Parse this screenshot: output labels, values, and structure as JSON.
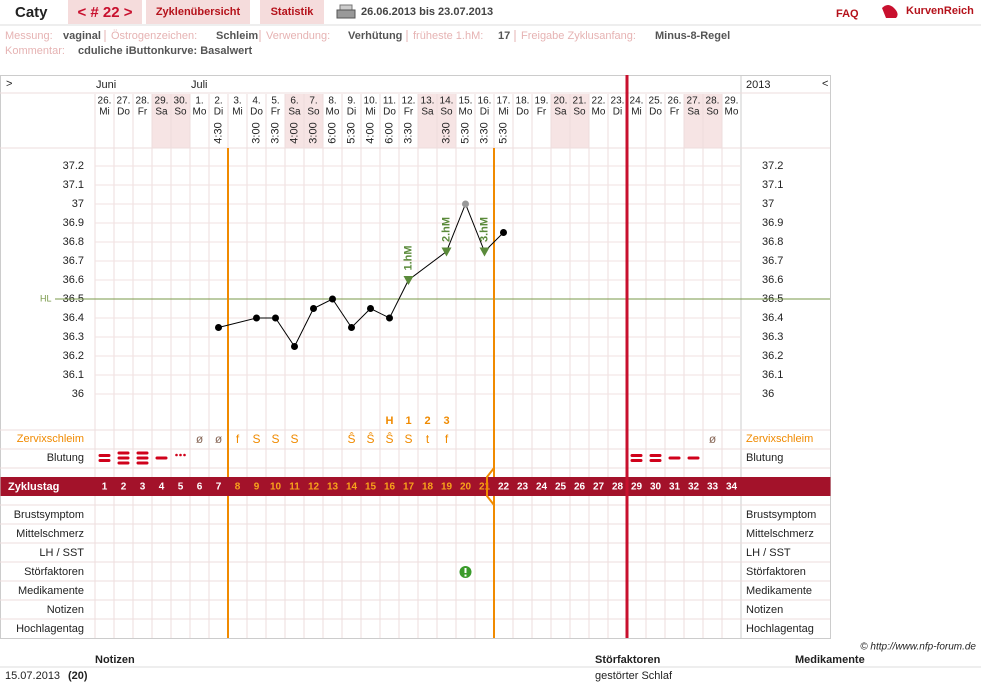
{
  "header": {
    "user": "Caty",
    "cycle_nav": "< # 22 >",
    "tabs": [
      "Zyklenübersicht",
      "Statistik"
    ],
    "date_range": "26.06.2013 bis 23.07.2013",
    "faq": "FAQ",
    "logo": "KurvenReich"
  },
  "info": {
    "fields": [
      {
        "label": "Messung:",
        "value": "vaginal"
      },
      {
        "label": "Östrogenzeichen:",
        "value": "Schleim"
      },
      {
        "label": "Verwendung:",
        "value": "Verhütung"
      },
      {
        "label": "früheste 1.hM:",
        "value": "17"
      },
      {
        "label": "Freigabe Zyklusanfang:",
        "value": "Minus-8-Regel"
      }
    ],
    "comment_label": "Kommentar:",
    "comment": "cduliche iButtonkurve: Basalwert"
  },
  "chart_data": {
    "type": "line",
    "nav_left": ">",
    "nav_right": "<",
    "year": "2013",
    "month_labels": [
      "Juni",
      null,
      null,
      null,
      null,
      "Juli",
      null,
      null,
      null,
      null,
      null,
      null,
      null,
      null,
      null,
      null,
      null,
      null,
      null,
      null,
      null,
      null,
      null,
      null,
      null,
      null,
      null,
      null,
      null,
      null,
      null,
      null,
      null,
      null
    ],
    "categories": [
      "26.",
      "27.",
      "28.",
      "29.",
      "30.",
      "1.",
      "2.",
      "3.",
      "4.",
      "5.",
      "6.",
      "7.",
      "8.",
      "9.",
      "10.",
      "11.",
      "12.",
      "13.",
      "14.",
      "15.",
      "16.",
      "17.",
      "18.",
      "19.",
      "20.",
      "21.",
      "22.",
      "23.",
      "24.",
      "25.",
      "26.",
      "27.",
      "28.",
      "29."
    ],
    "weekdays": [
      "Mi",
      "Do",
      "Fr",
      "Sa",
      "So",
      "Mo",
      "Di",
      "Mi",
      "Do",
      "Fr",
      "Sa",
      "So",
      "Mo",
      "Di",
      "Mi",
      "Do",
      "Fr",
      "Sa",
      "So",
      "Mo",
      "Di",
      "Mi",
      "Do",
      "Fr",
      "Sa",
      "So",
      "Mo",
      "Di",
      "Mi",
      "Do",
      "Fr",
      "Sa",
      "So",
      "Mo"
    ],
    "times": [
      null,
      null,
      null,
      null,
      null,
      null,
      "4:30",
      null,
      "3:00",
      "3:30",
      "4:00",
      "3:00",
      "6:00",
      "5:30",
      "4:00",
      "6:00",
      "3:30",
      null,
      "3:30",
      "5:30",
      "3:30",
      "5:30",
      null,
      null,
      null,
      null,
      null,
      null,
      null,
      null,
      null,
      null,
      null,
      null
    ],
    "cycle_label": "Zyklustag",
    "cycle_days": [
      1,
      2,
      3,
      4,
      5,
      6,
      7,
      8,
      9,
      10,
      11,
      12,
      13,
      14,
      15,
      16,
      17,
      18,
      19,
      20,
      21,
      22,
      23,
      24,
      25,
      26,
      27,
      28,
      29,
      30,
      31,
      32,
      33,
      34
    ],
    "x": [
      7,
      9,
      10,
      11,
      12,
      13,
      14,
      15,
      16,
      17,
      19,
      20,
      21,
      22
    ],
    "values": [
      36.35,
      36.4,
      36.4,
      36.25,
      36.45,
      36.5,
      36.35,
      36.45,
      36.4,
      36.6,
      36.75,
      37,
      36.75,
      36.85
    ],
    "color": "#000000",
    "excluded_days": [
      20
    ],
    "ylim": [
      36,
      37.2
    ],
    "yticks": [
      36,
      36.1,
      36.2,
      36.3,
      36.4,
      36.5,
      36.6,
      36.7,
      36.8,
      36.9,
      37,
      37.1,
      37.2
    ],
    "coverline": {
      "label": "HL",
      "value": 36.5,
      "color": "#7a9a4a"
    },
    "high_markers": [
      {
        "label": "1.hM",
        "day": 17
      },
      {
        "label": "2.hM",
        "day": 19
      },
      {
        "label": "3.hM",
        "day": 21
      }
    ],
    "evaluation": {
      "infertile_end_day": 7,
      "fertile_end_day": 21,
      "cycle_end_day": 28
    },
    "cervix_label": "Zervixschleim",
    "cervix": [
      null,
      null,
      null,
      null,
      null,
      "ø",
      "ø",
      "f",
      "S",
      "S",
      "S",
      null,
      null,
      "Ŝ",
      "Ŝ",
      "Ŝ",
      "S",
      "t",
      "f",
      null,
      null,
      null,
      null,
      null,
      null,
      null,
      null,
      null,
      null,
      null,
      null,
      null,
      "ø",
      null
    ],
    "peak": [
      null,
      null,
      null,
      null,
      null,
      null,
      null,
      null,
      null,
      null,
      null,
      null,
      null,
      null,
      null,
      "H",
      "1",
      "2",
      "3",
      null,
      null,
      null,
      null,
      null,
      null,
      null,
      null,
      null,
      null,
      null,
      null,
      null,
      null,
      null
    ],
    "bleeding_label": "Blutung",
    "bleeding": [
      3,
      4,
      4,
      2,
      1,
      null,
      null,
      null,
      null,
      null,
      null,
      null,
      null,
      null,
      null,
      null,
      null,
      null,
      null,
      null,
      null,
      null,
      null,
      null,
      null,
      null,
      null,
      null,
      3,
      3,
      2,
      2,
      null,
      null
    ],
    "extra_rows": [
      "Brustsymptom",
      "Mittelschmerz",
      "LH / SST",
      "Störfaktoren",
      "Medikamente",
      "Notizen",
      "Hochlagentag"
    ],
    "disturbance_days": [
      20
    ]
  },
  "footer": {
    "copyright": "© http://www.nfp-forum.de",
    "headers": [
      "Notizen",
      "Störfaktoren",
      "Medikamente"
    ],
    "rows": [
      [
        "15.07.2013",
        "(20)",
        "gestörter Schlaf"
      ]
    ]
  }
}
